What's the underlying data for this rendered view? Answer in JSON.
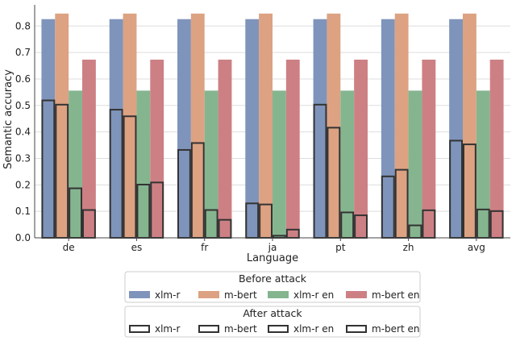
{
  "chart_data": {
    "type": "bar",
    "xlabel": "Language",
    "ylabel": "Semantic accuracy",
    "ylim": [
      0,
      0.88
    ],
    "yticks": [
      "0.0",
      "0.1",
      "0.2",
      "0.3",
      "0.4",
      "0.5",
      "0.6",
      "0.7",
      "0.8"
    ],
    "grid": "horizontal",
    "categories": [
      "de",
      "es",
      "fr",
      "ja",
      "pt",
      "zh",
      "avg"
    ],
    "before_attack": {
      "legend_title": "Before attack",
      "series": [
        {
          "name": "xlm-r",
          "color": "#7f94bb",
          "values": [
            0.826,
            0.826,
            0.826,
            0.826,
            0.826,
            0.826,
            0.826
          ]
        },
        {
          "name": "m-bert",
          "color": "#dca282",
          "values": [
            0.847,
            0.847,
            0.847,
            0.847,
            0.847,
            0.847,
            0.847
          ]
        },
        {
          "name": "xlm-r en",
          "color": "#85b58f",
          "values": [
            0.556,
            0.556,
            0.556,
            0.556,
            0.556,
            0.556,
            0.556
          ]
        },
        {
          "name": "m-bert en",
          "color": "#cd8084",
          "values": [
            0.673,
            0.673,
            0.673,
            0.673,
            0.673,
            0.673,
            0.673
          ]
        }
      ]
    },
    "after_attack": {
      "legend_title": "After attack",
      "series": [
        {
          "name": "xlm-r",
          "values": [
            0.519,
            0.484,
            0.332,
            0.13,
            0.503,
            0.232,
            0.367
          ]
        },
        {
          "name": "m-bert",
          "values": [
            0.503,
            0.459,
            0.358,
            0.126,
            0.416,
            0.257,
            0.353
          ]
        },
        {
          "name": "xlm-r en",
          "values": [
            0.187,
            0.201,
            0.105,
            0.008,
            0.096,
            0.047,
            0.107
          ]
        },
        {
          "name": "m-bert en",
          "values": [
            0.105,
            0.209,
            0.068,
            0.031,
            0.085,
            0.104,
            0.101
          ]
        }
      ]
    }
  }
}
